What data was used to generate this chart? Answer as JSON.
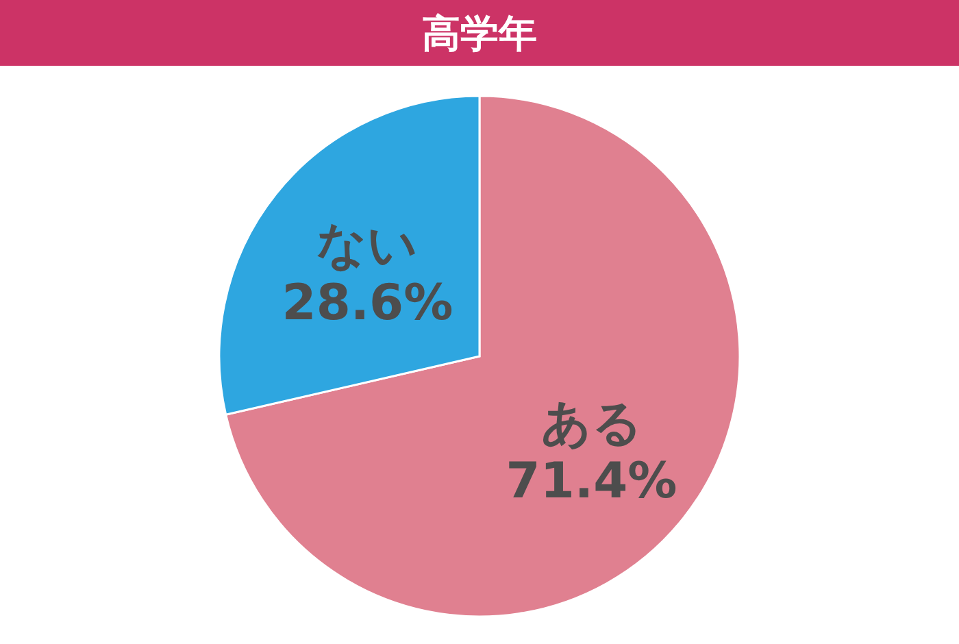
{
  "chart_data": {
    "type": "pie",
    "title": "高学年",
    "categories": [
      "ある",
      "ない"
    ],
    "values": [
      71.4,
      28.6
    ],
    "colors": [
      "#e08090",
      "#2ea6e0"
    ],
    "value_labels": [
      "71.4%",
      "28.6%"
    ]
  }
}
